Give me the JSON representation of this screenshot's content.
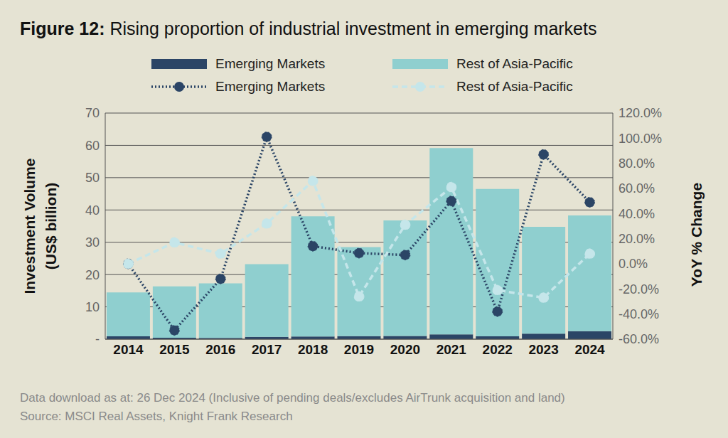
{
  "chart_data": {
    "type": "bar",
    "title": "Figure 12: Rising proportion of industrial investment in emerging markets",
    "y_label": "Investment Volume (US$ billion)",
    "y2_label": "YoY % Change",
    "notes": [
      "Data download as at: 26 Dec 2024 (Inclusive of pending deals/excludes AirTrunk acquisition and land)",
      "Source: MSCI Real Assets, Knight Frank Research"
    ],
    "categories": [
      "2014",
      "2015",
      "2016",
      "2017",
      "2018",
      "2019",
      "2020",
      "2021",
      "2022",
      "2023",
      "2024"
    ],
    "stacked": true,
    "grid": true,
    "legend": "top",
    "ylim": [
      0,
      70
    ],
    "yticks": [
      {
        "value": 0,
        "label": "-"
      },
      10,
      20,
      30,
      40,
      50,
      60,
      70
    ],
    "y2lim": [
      -60,
      120
    ],
    "y2ticks": [
      {
        "value": -60,
        "label": "-60.0%"
      },
      {
        "value": -40,
        "label": "-40.0%"
      },
      {
        "value": -20,
        "label": "-20.0%"
      },
      {
        "value": 0,
        "label": "0.0%"
      },
      {
        "value": 20,
        "label": "20.0%"
      },
      {
        "value": 40,
        "label": "40.0%"
      },
      {
        "value": 60,
        "label": "60.0%"
      },
      {
        "value": 80,
        "label": "80.0%"
      },
      {
        "value": 100,
        "label": "100.0%"
      },
      {
        "value": 120,
        "label": "120.0%"
      }
    ],
    "series": [
      {
        "name": "Emerging Markets",
        "type": "bar",
        "color": "#2b4566",
        "values": [
          0.9,
          0.42,
          0.37,
          0.74,
          0.84,
          0.91,
          0.97,
          1.46,
          0.9,
          1.68,
          2.5
        ]
      },
      {
        "name": "Rest of Asia-Pacific",
        "type": "bar",
        "color": "#8fcfcf",
        "values": [
          13.6,
          15.9,
          16.9,
          22.5,
          37.2,
          27.6,
          35.8,
          57.7,
          45.6,
          33.1,
          35.8
        ]
      },
      {
        "name": "Emerging Markets",
        "type": "line",
        "axis": "y2",
        "color": "#2b4566",
        "line_style": "dotted",
        "marker": "circle",
        "values": [
          0,
          -53,
          -12,
          101,
          14,
          8.5,
          7,
          50,
          -38,
          87,
          49
        ]
      },
      {
        "name": "Rest of Asia-Pacific",
        "type": "line",
        "axis": "y2",
        "color": "#c5e6ea",
        "line_style": "dashed",
        "marker": "circle",
        "values": [
          0,
          17,
          8,
          32,
          66,
          -26,
          31,
          61,
          -21,
          -27,
          8
        ]
      }
    ]
  }
}
